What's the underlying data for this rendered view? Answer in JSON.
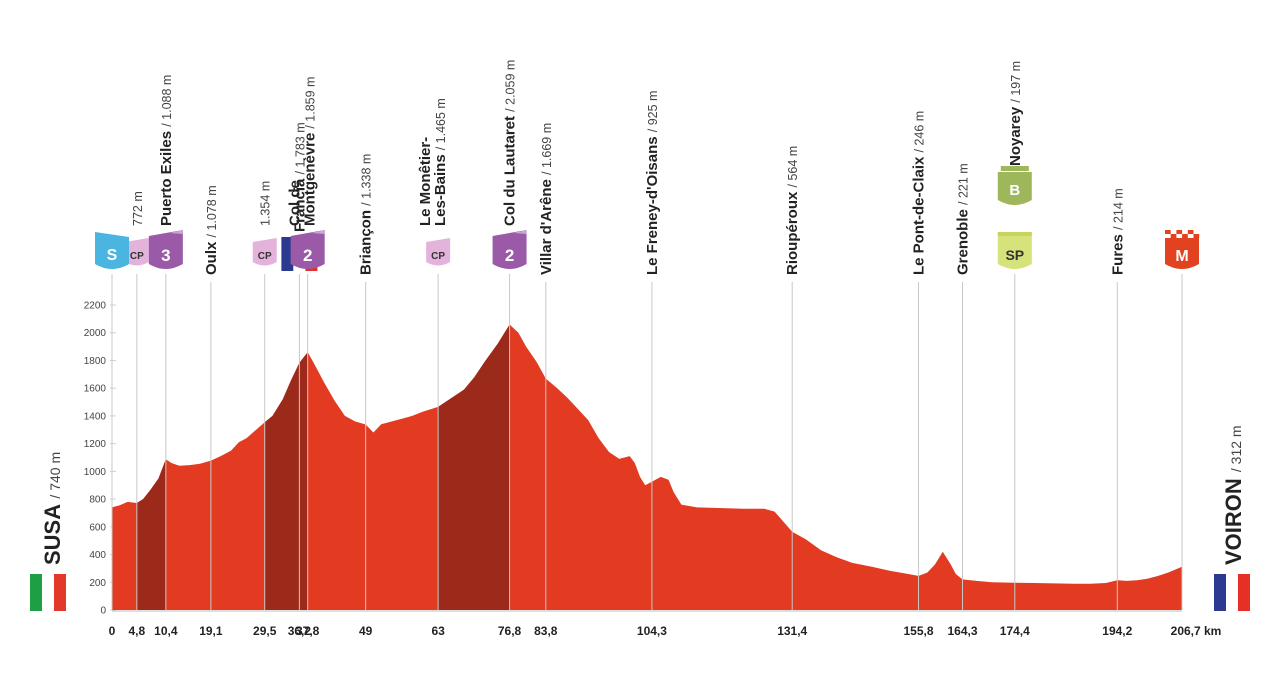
{
  "chart_data": {
    "type": "area",
    "title": "",
    "xlabel": "",
    "ylabel": "",
    "x_unit": "km",
    "xlim": [
      0,
      206.7
    ],
    "ylim": [
      0,
      2200
    ],
    "y_ticks": [
      "0",
      "200",
      "400",
      "600",
      "800",
      "1000",
      "1200",
      "1400",
      "1600",
      "1800",
      "2000",
      "2200"
    ],
    "profile": [
      [
        0,
        740
      ],
      [
        1.5,
        755
      ],
      [
        3,
        780
      ],
      [
        4.8,
        772
      ],
      [
        6,
        800
      ],
      [
        7.5,
        870
      ],
      [
        9,
        950
      ],
      [
        10.4,
        1088
      ],
      [
        11.5,
        1060
      ],
      [
        13,
        1040
      ],
      [
        15,
        1045
      ],
      [
        17,
        1055
      ],
      [
        19.1,
        1078
      ],
      [
        21,
        1110
      ],
      [
        23,
        1150
      ],
      [
        24.5,
        1210
      ],
      [
        26,
        1240
      ],
      [
        27.5,
        1290
      ],
      [
        29.5,
        1354
      ],
      [
        31,
        1400
      ],
      [
        33,
        1520
      ],
      [
        34.5,
        1650
      ],
      [
        36.2,
        1783
      ],
      [
        37.8,
        1859
      ],
      [
        39,
        1780
      ],
      [
        41,
        1640
      ],
      [
        43,
        1510
      ],
      [
        45,
        1400
      ],
      [
        47,
        1360
      ],
      [
        49,
        1338
      ],
      [
        50.5,
        1280
      ],
      [
        52,
        1340
      ],
      [
        54,
        1360
      ],
      [
        56,
        1380
      ],
      [
        58,
        1400
      ],
      [
        60,
        1430
      ],
      [
        63,
        1465
      ],
      [
        66,
        1540
      ],
      [
        68,
        1590
      ],
      [
        70,
        1680
      ],
      [
        72,
        1790
      ],
      [
        74.5,
        1920
      ],
      [
        76.8,
        2059
      ],
      [
        78.5,
        2000
      ],
      [
        80,
        1900
      ],
      [
        82,
        1790
      ],
      [
        83.8,
        1669
      ],
      [
        86,
        1600
      ],
      [
        88,
        1530
      ],
      [
        90,
        1450
      ],
      [
        92,
        1370
      ],
      [
        94,
        1240
      ],
      [
        96,
        1140
      ],
      [
        98,
        1090
      ],
      [
        100,
        1110
      ],
      [
        101,
        1060
      ],
      [
        102,
        960
      ],
      [
        103,
        900
      ],
      [
        104.3,
        925
      ],
      [
        106,
        960
      ],
      [
        107.5,
        940
      ],
      [
        108.5,
        850
      ],
      [
        110,
        760
      ],
      [
        113,
        740
      ],
      [
        118,
        735
      ],
      [
        122,
        730
      ],
      [
        126,
        730
      ],
      [
        128,
        710
      ],
      [
        131.4,
        564
      ],
      [
        134,
        510
      ],
      [
        137,
        430
      ],
      [
        140,
        380
      ],
      [
        143,
        340
      ],
      [
        147,
        310
      ],
      [
        150,
        285
      ],
      [
        153,
        265
      ],
      [
        155.8,
        246
      ],
      [
        157.5,
        270
      ],
      [
        159,
        330
      ],
      [
        160.5,
        420
      ],
      [
        162,
        330
      ],
      [
        163,
        260
      ],
      [
        164.3,
        221
      ],
      [
        167,
        210
      ],
      [
        170,
        200
      ],
      [
        174.4,
        197
      ],
      [
        178,
        195
      ],
      [
        182,
        192
      ],
      [
        186,
        190
      ],
      [
        189,
        190
      ],
      [
        192,
        195
      ],
      [
        194.2,
        214
      ],
      [
        196,
        210
      ],
      [
        198,
        215
      ],
      [
        200,
        225
      ],
      [
        202,
        245
      ],
      [
        204,
        270
      ],
      [
        206.7,
        312
      ]
    ],
    "shaded_climbs": [
      [
        4.8,
        10.4
      ],
      [
        29.5,
        37.8
      ],
      [
        63,
        76.8
      ]
    ],
    "waypoints": [
      {
        "km": "4,8",
        "x": 4.8,
        "name": "",
        "alt": "772 m",
        "badge": "CP"
      },
      {
        "km": "10,4",
        "x": 10.4,
        "name": "Puerto Exiles",
        "alt": "/ 1.088 m",
        "badge": "3"
      },
      {
        "km": "19,1",
        "x": 19.1,
        "name": "Oulx",
        "alt": "/ 1.078 m",
        "badge": ""
      },
      {
        "km": "29,5",
        "x": 29.5,
        "name": "",
        "alt": "1.354 m",
        "badge": "CP"
      },
      {
        "km": "36,2",
        "x": 36.2,
        "name": "Francia",
        "alt": "/ 1.783 m",
        "badge": "flag"
      },
      {
        "km": "37,8",
        "x": 37.8,
        "name": "Col de|Montgenèvre",
        "alt": "/ 1.859 m",
        "badge": "2"
      },
      {
        "km": "49",
        "x": 49,
        "name": "Briançon",
        "alt": "/ 1.338 m",
        "badge": ""
      },
      {
        "km": "63",
        "x": 63,
        "name": "Le Monêtier-|Les-Bains",
        "alt": "/ 1.465 m",
        "badge": "CP"
      },
      {
        "km": "76,8",
        "x": 76.8,
        "name": "Col du Lautaret",
        "alt": "/ 2.059 m",
        "badge": "2"
      },
      {
        "km": "83,8",
        "x": 83.8,
        "name": "Villar d'Arêne",
        "alt": "/ 1.669 m",
        "badge": ""
      },
      {
        "km": "104,3",
        "x": 104.3,
        "name": "Le Freney-d'Oisans",
        "alt": "/ 925 m",
        "badge": ""
      },
      {
        "km": "131,4",
        "x": 131.4,
        "name": "Rioupéroux",
        "alt": "/ 564 m",
        "badge": ""
      },
      {
        "km": "155,8",
        "x": 155.8,
        "name": "Le Pont-de-Claix",
        "alt": "/ 246 m",
        "badge": ""
      },
      {
        "km": "164,3",
        "x": 164.3,
        "name": "Grenoble",
        "alt": "/ 221 m",
        "badge": ""
      },
      {
        "km": "174,4",
        "x": 174.4,
        "name": "Noyarey",
        "alt": "/ 197 m",
        "badge": "B+SP"
      },
      {
        "km": "194,2",
        "x": 194.2,
        "name": "Fures",
        "alt": "/ 214 m",
        "badge": ""
      }
    ],
    "start": {
      "km": "0",
      "name": "SUSA",
      "alt": "/ 740 m",
      "badge": "S"
    },
    "finish": {
      "km": "206,7 km",
      "name": "VOIRON",
      "alt": "/ 312 m",
      "badge": "M"
    },
    "colors": {
      "profile": "#e23b22",
      "climb": "#9b2a1b",
      "axis": "#bdbdbd",
      "grid": "#d0d0d0",
      "start_badge": "#4ab5e0",
      "climb_badge": "#9a5aa8",
      "cp_badge": "#e3b3dc",
      "bonus_badge": "#9db75a",
      "sprint_badge": "#d6e27a",
      "finish_badge": "#e2421f"
    },
    "badge_text": {
      "S": "S",
      "CP": "CP",
      "3": "3",
      "2": "2",
      "B": "B",
      "SP": "SP",
      "M": "M"
    }
  }
}
